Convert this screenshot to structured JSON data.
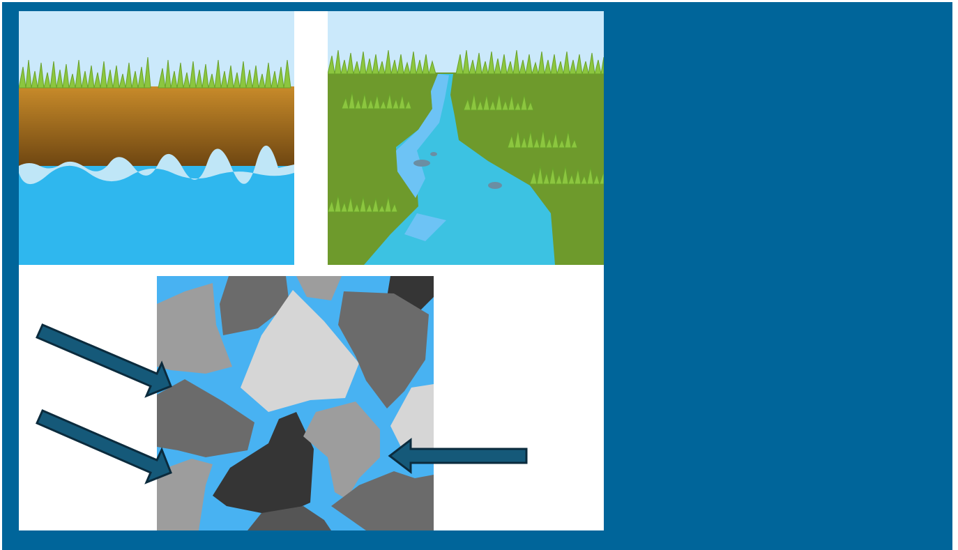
{
  "colors": {
    "slide_background": "#00659a",
    "panel_background": "#ffffff",
    "sky": "#cbe9fb",
    "grass": "#8cc63f",
    "soil_top": "#c88b2a",
    "soil_bottom": "#6a4310",
    "water": "#2fb7ee",
    "water_foam": "#bfe6f7",
    "field": "#6e9a2c",
    "stream": "#3cc2e2",
    "stream_light": "#6dc3f5",
    "pore_water": "#48b2f2",
    "rock_light": "#d6d6d6",
    "rock_mid": "#9d9d9d",
    "rock_dark": "#6b6b6b",
    "rock_darkest": "#353535",
    "arrow_fill": "#155979",
    "arrow_outline": "#0b2b3d"
  },
  "panels": [
    {
      "id": "groundwater",
      "icon": "soil-over-water-icon"
    },
    {
      "id": "stream",
      "icon": "stream-in-field-icon"
    },
    {
      "id": "pores",
      "icon": "rock-pore-space-icon"
    }
  ],
  "arrows": [
    {
      "name": "arrow-upper-left",
      "direction": "down-right"
    },
    {
      "name": "arrow-lower-left",
      "direction": "down-right"
    },
    {
      "name": "arrow-right",
      "direction": "left"
    }
  ]
}
